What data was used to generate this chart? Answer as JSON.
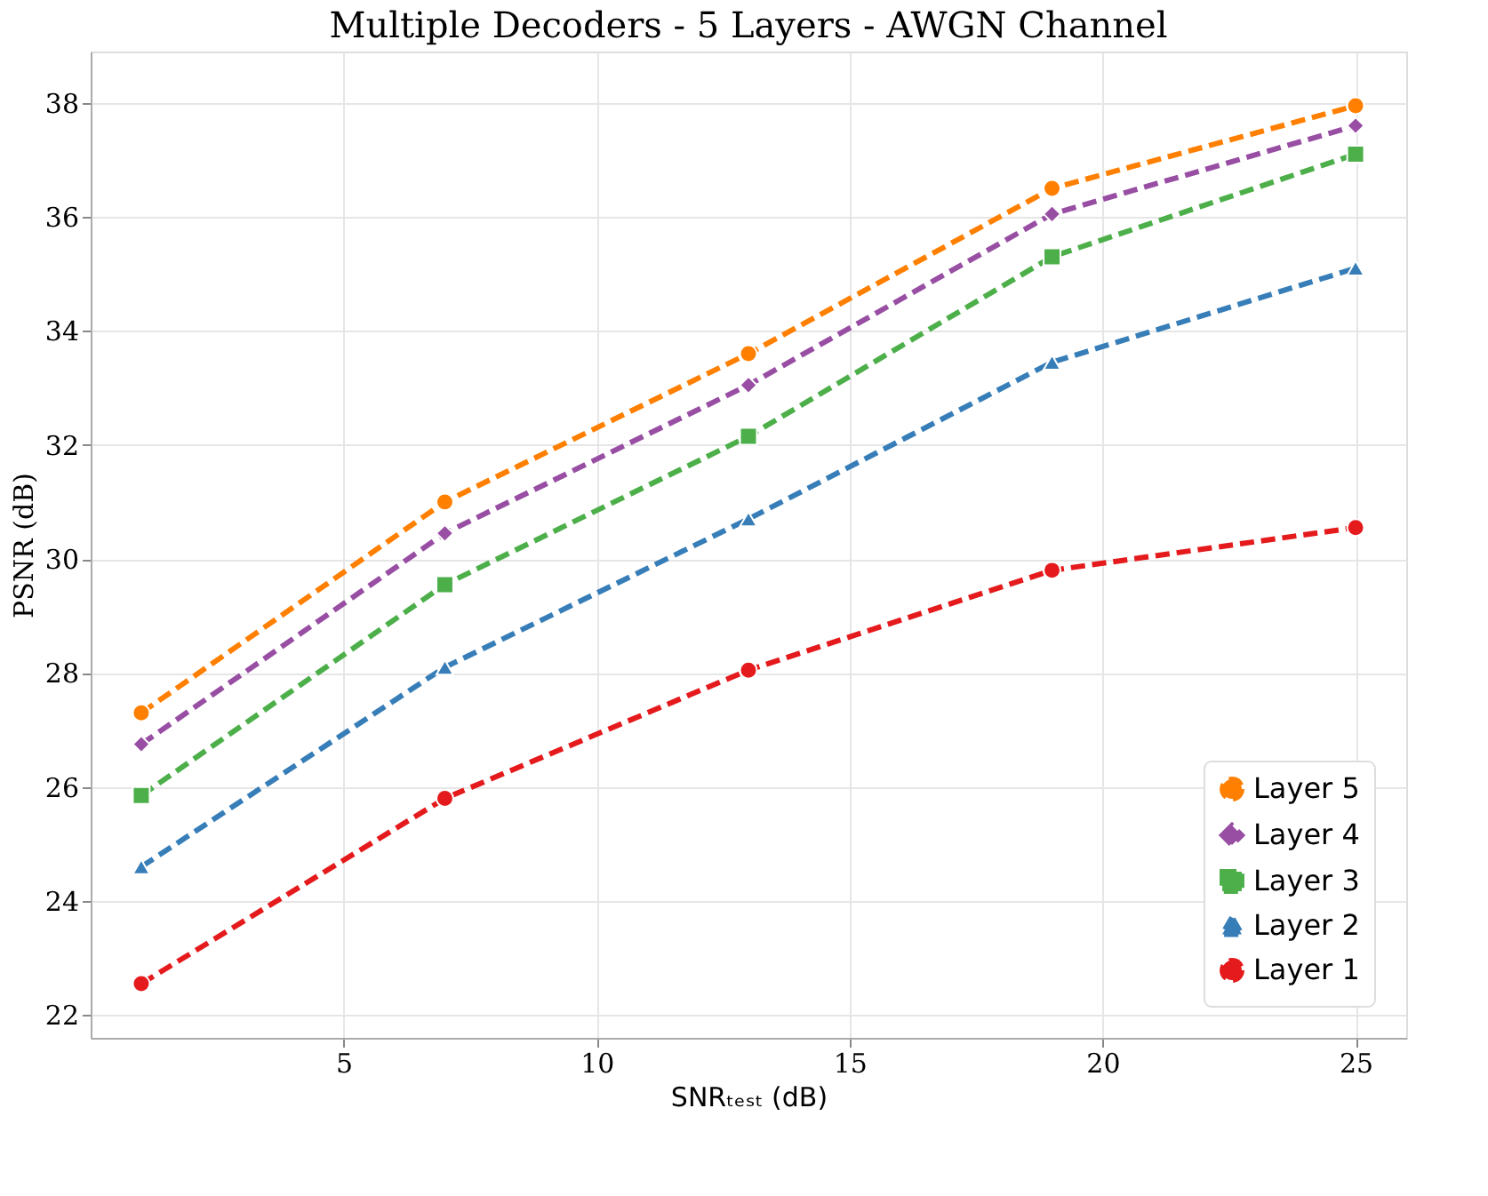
{
  "chart_data": {
    "type": "line",
    "title": "Multiple Decoders - 5 Layers - AWGN Channel",
    "xlabel": "SNRₜₑₛₜ (dB)",
    "ylabel": "PSNR (dB)",
    "x": [
      1,
      7,
      13,
      19,
      25
    ],
    "series": [
      {
        "name": "Layer 5",
        "color": "#ff7f00",
        "marker": "circle",
        "values": [
          27.3,
          31.0,
          33.6,
          36.5,
          37.95
        ]
      },
      {
        "name": "Layer 4",
        "color": "#984ea3",
        "marker": "diamond",
        "values": [
          26.75,
          30.45,
          33.05,
          36.05,
          37.6
        ]
      },
      {
        "name": "Layer 3",
        "color": "#4daf4a",
        "marker": "square",
        "values": [
          25.85,
          29.55,
          32.15,
          35.3,
          37.1
        ]
      },
      {
        "name": "Layer 2",
        "color": "#377eb8",
        "marker": "triangle",
        "values": [
          24.6,
          28.1,
          30.7,
          33.45,
          35.1
        ]
      },
      {
        "name": "Layer 1",
        "color": "#e41a1c",
        "marker": "circle",
        "values": [
          22.55,
          25.8,
          28.05,
          29.8,
          30.55
        ]
      }
    ],
    "xlim": [
      0,
      26
    ],
    "xticks": [
      5,
      10,
      15,
      20,
      25
    ],
    "ylim": [
      21.6,
      38.9
    ],
    "yticks": [
      22,
      24,
      26,
      28,
      30,
      32,
      34,
      36,
      38
    ],
    "grid": true,
    "legend": "bottom right",
    "line_style": "dashed"
  }
}
